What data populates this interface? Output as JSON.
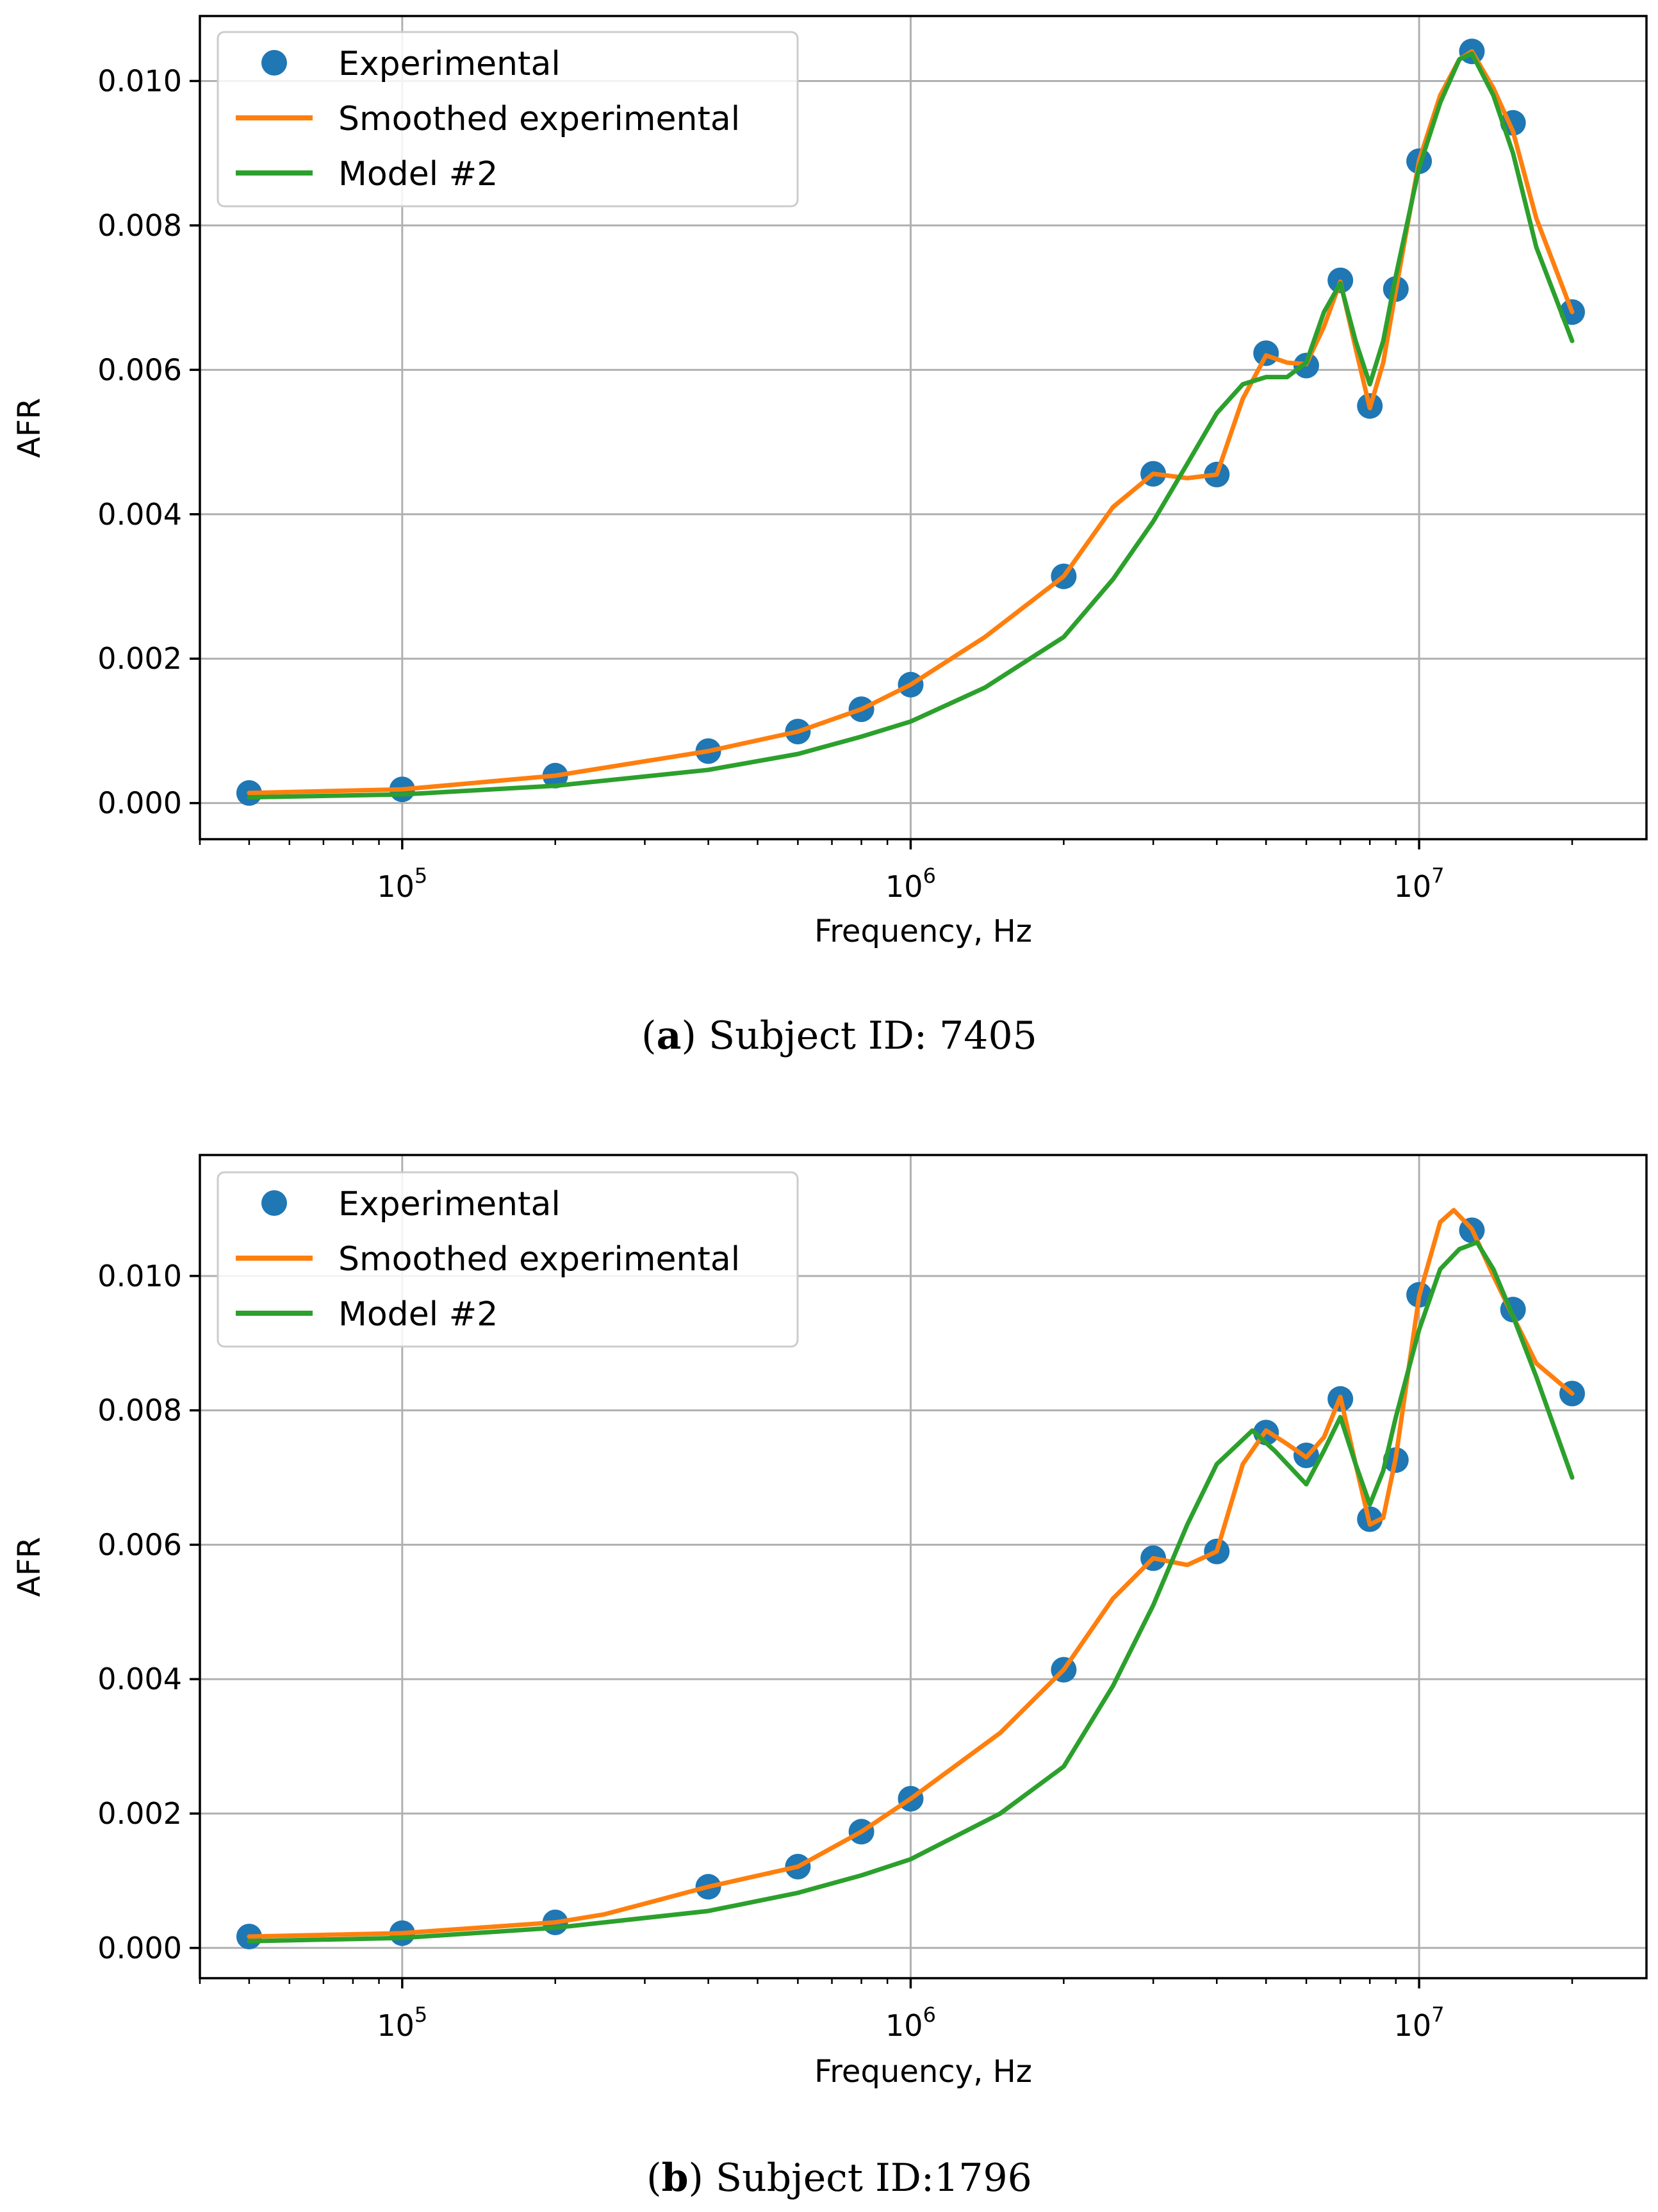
{
  "colors": {
    "experimental": "#1f77b4",
    "smoothed": "#ff7f0e",
    "model": "#2ca02c"
  },
  "chart_data": [
    {
      "type": "line",
      "caption": {
        "letter": "a",
        "text": "Subject ID: 7405"
      },
      "xlabel": "Frequency, Hz",
      "ylabel": "AFR",
      "xscale": "log",
      "xlim": [
        40000,
        28000000
      ],
      "ylim": [
        -0.0005,
        0.0109
      ],
      "grid": true,
      "legend_position": "top-left",
      "yticks": [
        0.0,
        0.002,
        0.004,
        0.006,
        0.008,
        0.01
      ],
      "ytick_labels": [
        "0.000",
        "0.002",
        "0.004",
        "0.006",
        "0.008",
        "0.010"
      ],
      "xticks": [
        {
          "value": 100000,
          "base": "10",
          "exp": "5"
        },
        {
          "value": 1000000,
          "base": "10",
          "exp": "6"
        },
        {
          "value": 10000000,
          "base": "10",
          "exp": "7"
        }
      ],
      "series": [
        {
          "name": "Experimental",
          "kind": "scatter",
          "color_key": "experimental",
          "x": [
            50000,
            100000,
            200000,
            400000,
            600000,
            800000,
            1000000,
            2000000,
            3000000,
            4000000,
            5000000,
            6000000,
            7000000,
            8000000,
            9000000,
            10000000,
            12700000,
            15300000,
            20000000
          ],
          "y": [
            0.00014,
            0.00019,
            0.00038,
            0.00072,
            0.00099,
            0.0013,
            0.00164,
            0.00314,
            0.00456,
            0.00455,
            0.00623,
            0.00606,
            0.00724,
            0.0055,
            0.00712,
            0.00889,
            0.01041,
            0.00942,
            0.0068
          ]
        },
        {
          "name": "Smoothed experimental",
          "kind": "line",
          "color_key": "smoothed",
          "x": [
            50000,
            100000,
            200000,
            400000,
            600000,
            800000,
            1000000,
            1400000,
            2000000,
            2500000,
            3000000,
            3500000,
            4000000,
            4500000,
            5000000,
            5500000,
            6000000,
            6500000,
            7000000,
            7500000,
            8000000,
            8500000,
            9000000,
            10000000,
            11000000,
            12000000,
            12700000,
            14000000,
            15300000,
            17000000,
            20000000
          ],
          "y": [
            0.00014,
            0.00019,
            0.00038,
            0.00072,
            0.00099,
            0.0013,
            0.00164,
            0.0023,
            0.00314,
            0.0041,
            0.00456,
            0.0045,
            0.00455,
            0.0056,
            0.0062,
            0.0061,
            0.00608,
            0.0066,
            0.00722,
            0.0063,
            0.00547,
            0.0061,
            0.0071,
            0.0089,
            0.0098,
            0.0103,
            0.01041,
            0.0099,
            0.0093,
            0.0081,
            0.0068
          ]
        },
        {
          "name": "Model #2",
          "kind": "line",
          "color_key": "model",
          "x": [
            50000,
            100000,
            200000,
            400000,
            600000,
            800000,
            1000000,
            1400000,
            2000000,
            2500000,
            3000000,
            3500000,
            4000000,
            4500000,
            5000000,
            5500000,
            6000000,
            6500000,
            7000000,
            7500000,
            8000000,
            8500000,
            9000000,
            10000000,
            11000000,
            12000000,
            12700000,
            14000000,
            15300000,
            17000000,
            20000000
          ],
          "y": [
            8e-05,
            0.00012,
            0.00024,
            0.00046,
            0.00068,
            0.00092,
            0.00113,
            0.0016,
            0.0023,
            0.0031,
            0.0039,
            0.0047,
            0.0054,
            0.0058,
            0.0059,
            0.0059,
            0.0061,
            0.0068,
            0.0072,
            0.0064,
            0.0058,
            0.0064,
            0.0073,
            0.0088,
            0.0097,
            0.0103,
            0.01038,
            0.0098,
            0.009,
            0.0077,
            0.0064
          ]
        }
      ]
    },
    {
      "type": "line",
      "caption": {
        "letter": "b",
        "text": "Subject ID:1796"
      },
      "xlabel": "Frequency, Hz",
      "ylabel": "AFR",
      "xscale": "log",
      "xlim": [
        40000,
        28000000
      ],
      "ylim": [
        -0.00045,
        0.0118
      ],
      "grid": true,
      "legend_position": "top-left",
      "yticks": [
        0.0,
        0.002,
        0.004,
        0.006,
        0.008,
        0.01
      ],
      "ytick_labels": [
        "0.000",
        "0.002",
        "0.004",
        "0.006",
        "0.008",
        "0.010"
      ],
      "xticks": [
        {
          "value": 100000,
          "base": "10",
          "exp": "5"
        },
        {
          "value": 1000000,
          "base": "10",
          "exp": "6"
        },
        {
          "value": 10000000,
          "base": "10",
          "exp": "7"
        }
      ],
      "series": [
        {
          "name": "Experimental",
          "kind": "scatter",
          "color_key": "experimental",
          "x": [
            50000,
            100000,
            200000,
            400000,
            600000,
            800000,
            1000000,
            2000000,
            3000000,
            4000000,
            5000000,
            6000000,
            7000000,
            8000000,
            9000000,
            10000000,
            12700000,
            15300000,
            20000000
          ],
          "y": [
            0.00017,
            0.00022,
            0.00038,
            0.00091,
            0.00121,
            0.00173,
            0.00222,
            0.00414,
            0.0058,
            0.0059,
            0.00767,
            0.00733,
            0.00817,
            0.00638,
            0.00726,
            0.00972,
            0.01068,
            0.0095,
            0.00825
          ]
        },
        {
          "name": "Smoothed experimental",
          "kind": "line",
          "color_key": "smoothed",
          "x": [
            50000,
            100000,
            200000,
            250000,
            400000,
            600000,
            800000,
            1000000,
            1500000,
            2000000,
            2500000,
            3000000,
            3500000,
            4000000,
            4500000,
            5000000,
            5500000,
            6000000,
            6500000,
            7000000,
            7500000,
            8000000,
            8500000,
            9000000,
            10000000,
            11000000,
            11700000,
            12700000,
            14000000,
            15300000,
            17000000,
            20000000
          ],
          "y": [
            0.00017,
            0.00022,
            0.00038,
            0.0005,
            0.00091,
            0.00121,
            0.00173,
            0.00222,
            0.0032,
            0.00414,
            0.0052,
            0.0058,
            0.0057,
            0.0059,
            0.0072,
            0.0077,
            0.0075,
            0.0073,
            0.0076,
            0.0082,
            0.0072,
            0.0063,
            0.0064,
            0.0073,
            0.0097,
            0.0108,
            0.01098,
            0.0107,
            0.01,
            0.0094,
            0.0087,
            0.00825
          ]
        },
        {
          "name": "Model #2",
          "kind": "line",
          "color_key": "model",
          "x": [
            50000,
            100000,
            200000,
            400000,
            600000,
            800000,
            1000000,
            1500000,
            2000000,
            2500000,
            3000000,
            3500000,
            4000000,
            4700000,
            5200000,
            6000000,
            6500000,
            7000000,
            7500000,
            8000000,
            8500000,
            9000000,
            10000000,
            11000000,
            12000000,
            13000000,
            14000000,
            15300000,
            17000000,
            20000000
          ],
          "y": [
            0.0001,
            0.00015,
            0.0003,
            0.00055,
            0.00082,
            0.00108,
            0.00132,
            0.002,
            0.0027,
            0.0039,
            0.0051,
            0.0063,
            0.0072,
            0.0077,
            0.0074,
            0.0069,
            0.0074,
            0.0079,
            0.0072,
            0.0066,
            0.0071,
            0.0079,
            0.0092,
            0.0101,
            0.0104,
            0.0105,
            0.0101,
            0.0094,
            0.0085,
            0.007
          ]
        }
      ]
    }
  ]
}
